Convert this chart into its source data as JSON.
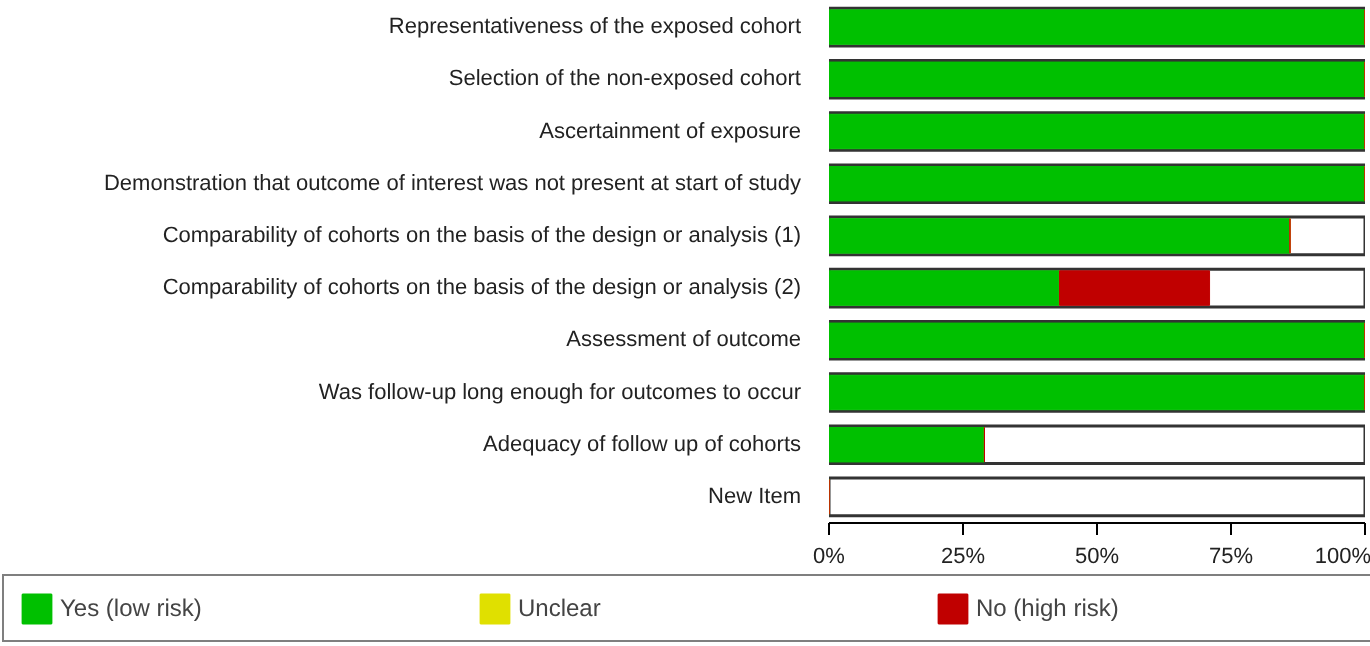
{
  "chart_data": {
    "type": "bar",
    "orientation": "horizontal",
    "stacked": true,
    "categories": [
      "Representativeness of the exposed cohort",
      "Selection of the non-exposed cohort",
      "Ascertainment of exposure",
      "Demonstration that outcome of interest was not present at start of study",
      "Comparability of cohorts on the basis of the design or analysis (1)",
      "Comparability of cohorts on the basis of the design or analysis (2)",
      "Assessment of outcome",
      "Was follow-up long enough for outcomes to occur",
      "Adequacy of follow up of cohorts",
      "New Item"
    ],
    "series": [
      {
        "name": "Yes (low risk)",
        "color": "#00c000",
        "values": [
          100,
          100,
          100,
          100,
          86,
          43,
          100,
          100,
          29,
          0
        ]
      },
      {
        "name": "Unclear",
        "color": "#e0e000",
        "values": [
          0,
          0,
          0,
          0,
          0,
          0,
          0,
          0,
          0,
          0
        ]
      },
      {
        "name": "No (high risk)",
        "color": "#c00000",
        "values": [
          0,
          0,
          0,
          0,
          0,
          28,
          0,
          0,
          0,
          0
        ]
      }
    ],
    "xlim": [
      0,
      100
    ],
    "xticks": [
      {
        "value": 0,
        "label": "0%"
      },
      {
        "value": 25,
        "label": "25%"
      },
      {
        "value": 50,
        "label": "50%"
      },
      {
        "value": 75,
        "label": "75%"
      },
      {
        "value": 100,
        "label": "100%"
      }
    ],
    "grid": false,
    "legend": "bottom"
  }
}
